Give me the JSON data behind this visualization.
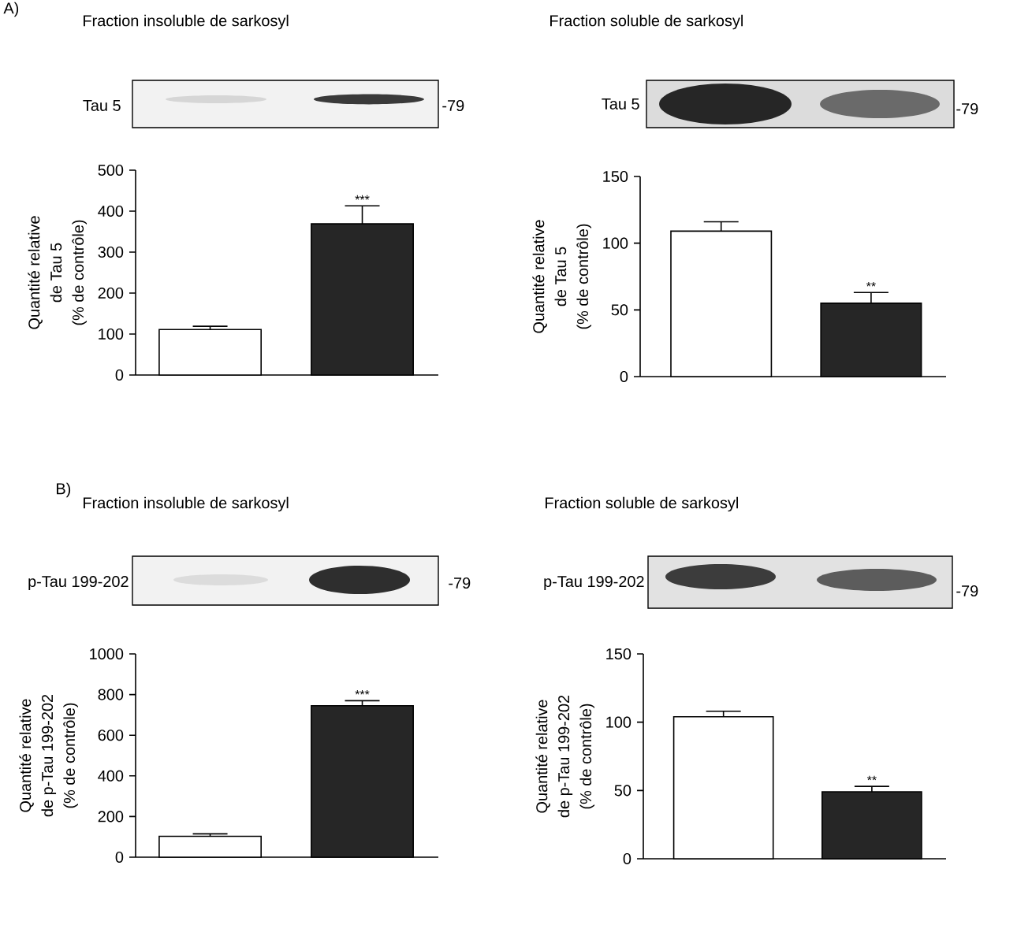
{
  "chart_data": [
    {
      "type": "bar",
      "title": "Fraction insoluble de sarkosyl",
      "ylabel": "Quantité relative\nde Tau 5\n(% de contrôle)",
      "categories": [
        null,
        null
      ],
      "values": [
        111,
        369
      ],
      "colors": [
        "#ffffff",
        "#262626"
      ],
      "errors": [
        8,
        44
      ],
      "value_labels": [
        null,
        "***"
      ],
      "ylim": [
        0,
        500
      ],
      "yticks": [
        0,
        100,
        200,
        300,
        400,
        500
      ],
      "annotations": [
        "Tau 5",
        "-79",
        "A)"
      ]
    },
    {
      "type": "bar",
      "title": "Fraction soluble de sarkosyl",
      "ylabel": "Quantité relative\nde Tau 5\n(% de contrôle)",
      "categories": [
        null,
        null
      ],
      "values": [
        109,
        55
      ],
      "colors": [
        "#ffffff",
        "#262626"
      ],
      "errors": [
        7,
        8
      ],
      "value_labels": [
        null,
        "**"
      ],
      "ylim": [
        0,
        150
      ],
      "yticks": [
        0,
        50,
        100,
        150
      ],
      "annotations": [
        "Tau 5",
        "-79"
      ]
    },
    {
      "type": "bar",
      "title": "Fraction insoluble de sarkosyl",
      "ylabel": "Quantité relative\nde p-Tau 199-202\n(% de contrôle)",
      "categories": [
        null,
        null
      ],
      "values": [
        103,
        745
      ],
      "colors": [
        "#ffffff",
        "#262626"
      ],
      "errors": [
        12,
        25
      ],
      "value_labels": [
        null,
        "***"
      ],
      "ylim": [
        0,
        1000
      ],
      "yticks": [
        0,
        200,
        400,
        600,
        800,
        1000
      ],
      "annotations": [
        "p-Tau 199-202",
        "-79",
        "B)"
      ]
    },
    {
      "type": "bar",
      "title": "Fraction soluble de sarkosyl",
      "ylabel": "Quantité relative\nde p-Tau 199-202\n(% de contrôle)",
      "categories": [
        null,
        null
      ],
      "values": [
        104,
        49
      ],
      "colors": [
        "#ffffff",
        "#262626"
      ],
      "errors": [
        4,
        4
      ],
      "value_labels": [
        null,
        "**"
      ],
      "ylim": [
        0,
        150
      ],
      "yticks": [
        0,
        50,
        100,
        150
      ],
      "annotations": [
        "p-Tau 199-202",
        "-79"
      ]
    }
  ]
}
